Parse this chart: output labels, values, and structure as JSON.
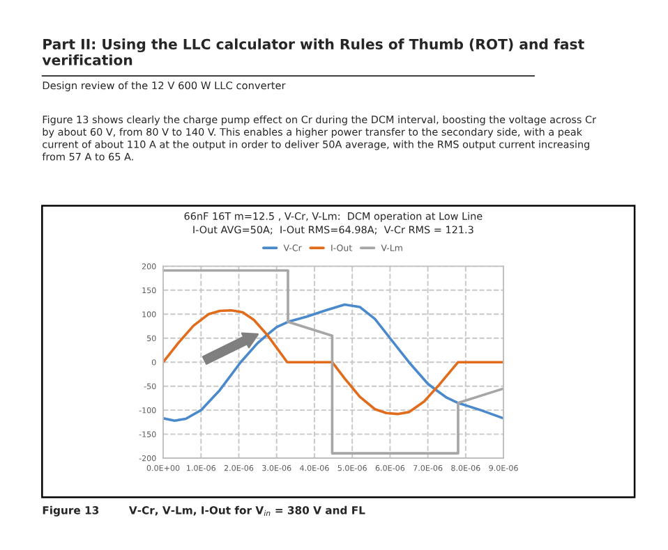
{
  "chart_data": {
    "type": "line",
    "title": "66nF 16T m=12.5 , V-Cr, V-Lm:  DCM operation at Low Line\nI-Out AVG=50A;  I-Out RMS=64.98A;  V-Cr RMS = 121.3",
    "annotations": [
      "Part II: Using the LLC calculator with Rules of Thumb (ROT) and fast\nverification",
      "Design review of the 12 V 600 W LLC converter",
      "Figure 13 shows clearly the charge pump effect on Cr during the DCM interval, boosting the voltage across Cr\nby about 60 V, from 80 V to 140 V. This enables a higher power transfer to the secondary side, with a peak\ncurrent of about 110 A at the output in order to deliver 50A average, with the RMS output current increasing\nfrom 57 A to 65 A.",
      "Figure 13        V-Cr, V-Lm, I-Out for V$_{in}$ = 380 V and FL"
    ],
    "series": [
      {
        "name": "V-Cr",
        "color": "#4a89cc",
        "x": [
          0,
          3e-07,
          6e-07,
          1e-06,
          1.5e-06,
          2.05e-06,
          2.5e-06,
          2.75e-06,
          3e-06,
          3.3e-06,
          3.8e-06,
          4.3e-06,
          4.8e-06,
          5.2e-06,
          5.6e-06,
          6e-06,
          6.5e-06,
          7e-06,
          7.2e-06,
          7.5e-06,
          7.8e-06,
          8.4e-06,
          9e-06
        ],
        "values": [
          -117,
          -122,
          -118,
          -100,
          -58,
          0,
          40,
          57,
          73,
          84,
          95,
          108,
          120,
          115,
          90,
          50,
          0,
          -45,
          -57,
          -74,
          -85,
          -100,
          -117
        ]
      },
      {
        "name": "I-Out",
        "color": "#e06c1c",
        "x": [
          0,
          4e-07,
          8e-07,
          1.2e-06,
          1.5e-06,
          1.8e-06,
          2.1e-06,
          2.4e-06,
          2.75e-06,
          3.28e-06,
          4.47e-06,
          4.8e-06,
          5.2e-06,
          5.6e-06,
          5.9e-06,
          6.2e-06,
          6.5e-06,
          6.9e-06,
          7.3e-06,
          7.8e-06,
          9e-06
        ],
        "values": [
          0,
          40,
          76,
          100,
          107,
          108,
          104,
          88,
          57,
          0,
          0,
          -34,
          -72,
          -98,
          -106,
          -108,
          -104,
          -82,
          -47,
          0,
          0
        ]
      },
      {
        "name": "V-Lm",
        "color": "#a6a6a6",
        "x": [
          0,
          3.3e-06,
          3.3e-06,
          4.47e-06,
          4.47e-06,
          7.8e-06,
          7.8e-06,
          9e-06
        ],
        "values": [
          191,
          191,
          84,
          55,
          -190,
          -190,
          -85,
          -55
        ]
      }
    ],
    "xlim": [
      0,
      9e-06
    ],
    "xticks": [
      {
        "value": 0,
        "label": "0.0E+00"
      },
      {
        "value": 1e-06,
        "label": "1.0E-06"
      },
      {
        "value": 2e-06,
        "label": "2.0E-06"
      },
      {
        "value": 3e-06,
        "label": "3.0E-06"
      },
      {
        "value": 4e-06,
        "label": "4.0E-06"
      },
      {
        "value": 5e-06,
        "label": "5.0E-06"
      },
      {
        "value": 6e-06,
        "label": "6.0E-06"
      },
      {
        "value": 7e-06,
        "label": "7.0E-06"
      },
      {
        "value": 8e-06,
        "label": "8.0E-06"
      },
      {
        "value": 9e-06,
        "label": "9.0E-06"
      }
    ],
    "ylim": [
      -200,
      200
    ],
    "yticks": [
      -200,
      -150,
      -100,
      -50,
      0,
      50,
      100,
      150,
      200
    ],
    "grid": true,
    "legend": "top",
    "marker": "none",
    "line_style": "solid"
  }
}
